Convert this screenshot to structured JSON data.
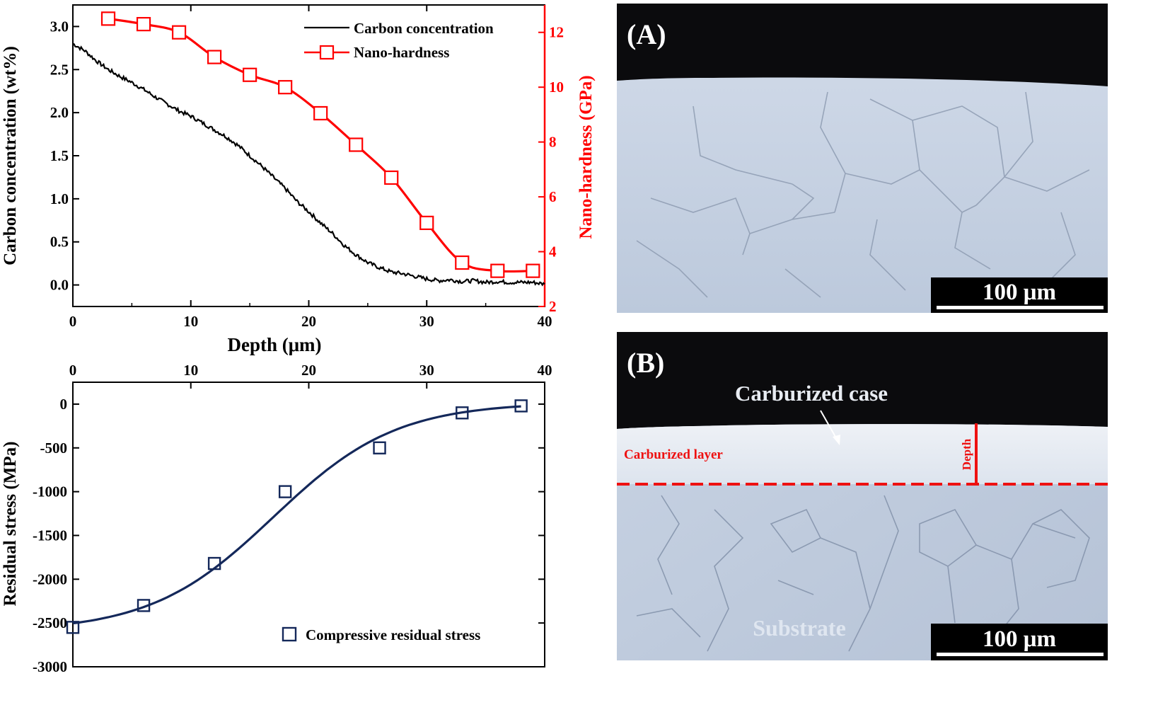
{
  "chart_data": [
    {
      "type": "line",
      "xlabel": "Depth (μm)",
      "ylabel_left": "Carbon concentration (wt%)",
      "ylabel_right": "Nano-hardness (GPa)",
      "xlim": [
        0,
        40
      ],
      "ylim_left": [
        -0.25,
        3.25
      ],
      "ylim_right": [
        2,
        13
      ],
      "x_ticks": [
        0,
        10,
        20,
        30,
        40
      ],
      "y_ticks_left": [
        0.0,
        0.5,
        1.0,
        1.5,
        2.0,
        2.5,
        3.0
      ],
      "y_ticks_right": [
        2,
        4,
        6,
        8,
        10,
        12
      ],
      "grid": false,
      "legend_position": "top-right",
      "series": [
        {
          "name": "Carbon concentration",
          "axis": "left",
          "color": "#000000",
          "x": [
            0,
            1,
            2,
            3,
            4,
            5,
            6,
            7,
            8,
            9,
            10,
            11,
            12,
            13,
            14,
            15,
            16,
            17,
            18,
            19,
            20,
            21,
            22,
            23,
            24,
            25,
            26,
            27,
            28,
            29,
            30,
            31,
            32,
            33,
            34,
            35,
            36,
            37,
            38,
            39,
            40
          ],
          "values": [
            2.8,
            2.72,
            2.6,
            2.5,
            2.42,
            2.35,
            2.27,
            2.18,
            2.1,
            2.02,
            1.96,
            1.88,
            1.8,
            1.72,
            1.62,
            1.5,
            1.38,
            1.25,
            1.12,
            0.97,
            0.85,
            0.72,
            0.6,
            0.46,
            0.35,
            0.26,
            0.2,
            0.15,
            0.13,
            0.1,
            0.07,
            0.05,
            0.06,
            0.04,
            0.05,
            0.03,
            0.04,
            0.03,
            0.03,
            0.03,
            0.01
          ]
        },
        {
          "name": "Nano-hardness",
          "axis": "right",
          "color": "#ff0000",
          "marker": "open-square",
          "x": [
            3,
            6,
            9,
            12,
            15,
            18,
            21,
            24,
            27,
            30,
            33,
            36,
            39
          ],
          "values": [
            12.5,
            12.3,
            12.0,
            11.1,
            10.45,
            10.0,
            9.05,
            7.9,
            6.7,
            5.05,
            3.6,
            3.3,
            3.3
          ]
        }
      ]
    },
    {
      "type": "scatter",
      "ylabel": "Residual stress (MPa)",
      "xlim": [
        0,
        40
      ],
      "ylim": [
        -3000,
        250
      ],
      "x_ticks": [
        0,
        10,
        20,
        30,
        40
      ],
      "y_ticks": [
        0,
        -500,
        -1000,
        -1500,
        -2000,
        -2500,
        -3000
      ],
      "x_axis_position": "top",
      "grid": false,
      "legend_position": "bottom-right",
      "series": [
        {
          "name": "Compressive residual stress",
          "color": "#14285a",
          "marker": "open-square",
          "fit_line": true,
          "x": [
            0,
            6,
            12,
            18,
            26,
            33,
            38
          ],
          "values": [
            -2550,
            -2300,
            -1820,
            -1000,
            -500,
            -100,
            -20
          ]
        }
      ]
    }
  ],
  "panels": {
    "a": {
      "label": "(A)",
      "scale_bar": "100 μm"
    },
    "b": {
      "label": "(B)",
      "scale_bar": "100 μm",
      "annotation_case": "Carburized case",
      "annotation_layer": "Carburized layer",
      "annotation_depth": "Depth",
      "annotation_substrate": "Substrate"
    }
  },
  "colors": {
    "carbon": "#000000",
    "hardness": "#ff0000",
    "stress": "#14285a",
    "micro_dark": "#0b0b0d",
    "micro_grain": "#c6d2e2",
    "micro_case": "#e6ebf2",
    "annotation_red": "#ee1111"
  }
}
